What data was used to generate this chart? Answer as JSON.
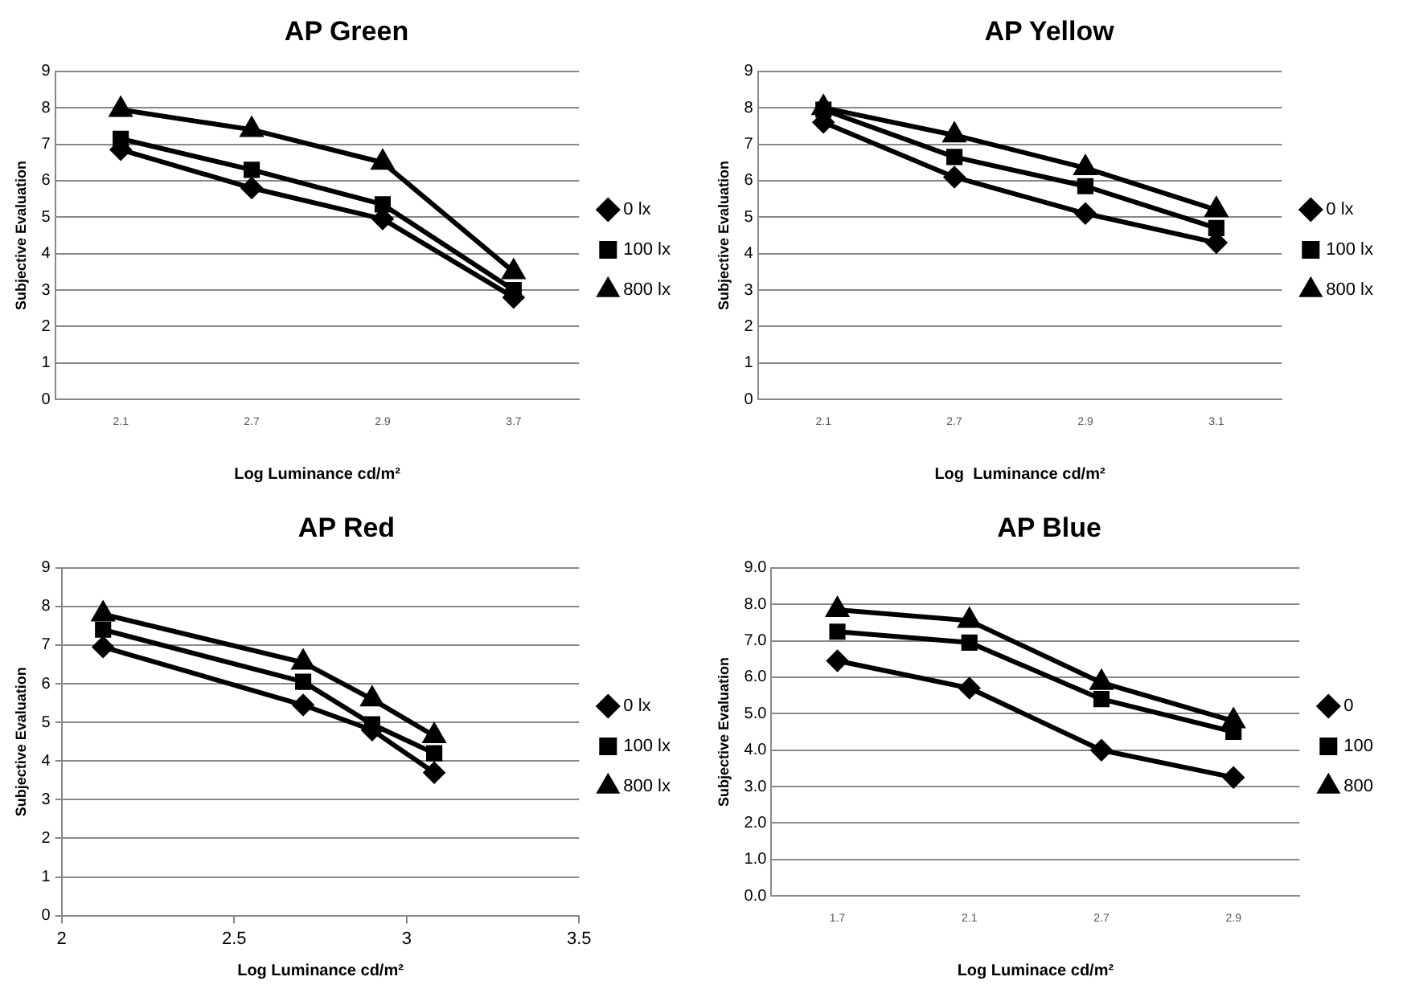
{
  "chart_data": [
    {
      "type": "line",
      "title": "AP Green",
      "xlabel": "Log Luminance cd/m²",
      "ylabel": "Subjective Evaluation",
      "categories": [
        "2.1",
        "2.7",
        "2.9",
        "3.7"
      ],
      "ylim": [
        0,
        9
      ],
      "yticks": [
        0,
        1,
        2,
        3,
        4,
        5,
        6,
        7,
        8,
        9
      ],
      "grid": "y",
      "legend": "right",
      "series": [
        {
          "name": "0 lx",
          "color": "#000000",
          "marker": "diamond",
          "values": [
            6.85,
            5.8,
            4.95,
            2.8
          ]
        },
        {
          "name": "100 lx",
          "color": "#000000",
          "marker": "square",
          "values": [
            7.15,
            6.3,
            5.35,
            3.0
          ]
        },
        {
          "name": "800 lx",
          "color": "#000000",
          "marker": "triangle",
          "values": [
            7.95,
            7.4,
            6.5,
            3.5
          ]
        }
      ]
    },
    {
      "type": "line",
      "title": "AP Yellow",
      "xlabel": "Log  Luminance cd/m²",
      "ylabel": "Subjective Evaluation",
      "categories": [
        "2.1",
        "2.7",
        "2.9",
        "3.1"
      ],
      "ylim": [
        0,
        9
      ],
      "yticks": [
        0,
        1,
        2,
        3,
        4,
        5,
        6,
        7,
        8,
        9
      ],
      "grid": "y",
      "legend": "right",
      "series": [
        {
          "name": "0 lx",
          "color": "#000000",
          "marker": "diamond",
          "values": [
            7.6,
            6.1,
            5.1,
            4.3
          ]
        },
        {
          "name": "100 lx",
          "color": "#000000",
          "marker": "square",
          "values": [
            7.95,
            6.65,
            5.85,
            4.7
          ]
        },
        {
          "name": "800 lx",
          "color": "#000000",
          "marker": "triangle",
          "values": [
            8.0,
            7.25,
            6.35,
            5.2
          ]
        }
      ]
    },
    {
      "type": "line",
      "title": "AP Red",
      "xlabel": "Log Luminance cd/m²",
      "ylabel": "Subjective Evaluation",
      "x": [
        2.12,
        2.7,
        2.9,
        3.08
      ],
      "xlim": [
        2,
        3.5
      ],
      "xticks": [
        2,
        2.5,
        3,
        3.5
      ],
      "ylim": [
        0,
        9
      ],
      "yticks": [
        0,
        1,
        2,
        3,
        4,
        5,
        6,
        7,
        8,
        9
      ],
      "grid": "y",
      "legend": "right",
      "series": [
        {
          "name": "0 lx",
          "color": "#000000",
          "marker": "diamond",
          "values": [
            6.95,
            5.45,
            4.8,
            3.7
          ]
        },
        {
          "name": "100 lx",
          "color": "#000000",
          "marker": "square",
          "values": [
            7.4,
            6.05,
            4.95,
            4.2
          ]
        },
        {
          "name": "800 lx",
          "color": "#000000",
          "marker": "triangle",
          "values": [
            7.8,
            6.55,
            5.6,
            4.65
          ]
        }
      ]
    },
    {
      "type": "line",
      "title": "AP Blue",
      "xlabel": "Log Luminace cd/m²",
      "ylabel": "Subjective Evaluation",
      "categories": [
        "1.7",
        "2.1",
        "2.7",
        "2.9"
      ],
      "ylim": [
        0,
        9
      ],
      "yticks": [
        {
          "value": 0,
          "label": "0.0"
        },
        {
          "value": 1,
          "label": "1.0"
        },
        {
          "value": 2,
          "label": "2.0"
        },
        {
          "value": 3,
          "label": "3.0"
        },
        {
          "value": 4,
          "label": "4.0"
        },
        {
          "value": 5,
          "label": "5.0"
        },
        {
          "value": 6,
          "label": "6.0"
        },
        {
          "value": 7,
          "label": "7.0"
        },
        {
          "value": 8,
          "label": "8.0"
        },
        {
          "value": 9,
          "label": "9.0"
        }
      ],
      "grid": "y",
      "legend": "right",
      "series": [
        {
          "name": "0",
          "color": "#000000",
          "marker": "diamond",
          "values": [
            6.45,
            5.7,
            4.0,
            3.25
          ]
        },
        {
          "name": "100",
          "color": "#000000",
          "marker": "square",
          "values": [
            7.25,
            6.95,
            5.4,
            4.5
          ]
        },
        {
          "name": "800",
          "color": "#000000",
          "marker": "triangle",
          "values": [
            7.85,
            7.55,
            5.85,
            4.8
          ]
        }
      ]
    }
  ]
}
